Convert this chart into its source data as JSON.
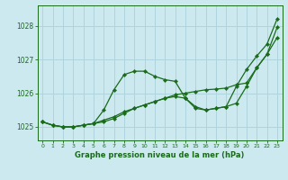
{
  "title": "Graphe pression niveau de la mer (hPa)",
  "background_color": "#cce9f0",
  "grid_color": "#b0d4de",
  "line_color": "#1a6b1a",
  "xlim": [
    -0.5,
    23.5
  ],
  "ylim": [
    1024.6,
    1028.6
  ],
  "yticks": [
    1025,
    1026,
    1027,
    1028
  ],
  "xticks": [
    0,
    1,
    2,
    3,
    4,
    5,
    6,
    7,
    8,
    9,
    10,
    11,
    12,
    13,
    14,
    15,
    16,
    17,
    18,
    19,
    20,
    21,
    22,
    23
  ],
  "series": [
    [
      1025.15,
      1025.05,
      1025.0,
      1025.0,
      1025.05,
      1025.1,
      1025.5,
      1026.1,
      1026.55,
      1026.65,
      1026.65,
      1026.5,
      1026.4,
      1026.35,
      1025.85,
      1025.55,
      1025.5,
      1025.55,
      1025.6,
      1026.2,
      1026.7,
      1027.1,
      1027.45,
      1028.2
    ],
    [
      1025.15,
      1025.05,
      1025.0,
      1025.0,
      1025.05,
      1025.1,
      1025.2,
      1025.3,
      1025.45,
      1025.55,
      1025.65,
      1025.75,
      1025.85,
      1025.9,
      1025.85,
      1025.6,
      1025.5,
      1025.55,
      1025.6,
      1025.7,
      1026.2,
      1026.75,
      1027.15,
      1027.65
    ],
    [
      1025.15,
      1025.05,
      1025.0,
      1025.0,
      1025.05,
      1025.1,
      1025.15,
      1025.25,
      1025.4,
      1025.55,
      1025.65,
      1025.75,
      1025.85,
      1025.95,
      1026.0,
      1026.05,
      1026.1,
      1026.12,
      1026.15,
      1026.25,
      1026.3,
      1026.75,
      1027.15,
      1027.95
    ]
  ]
}
